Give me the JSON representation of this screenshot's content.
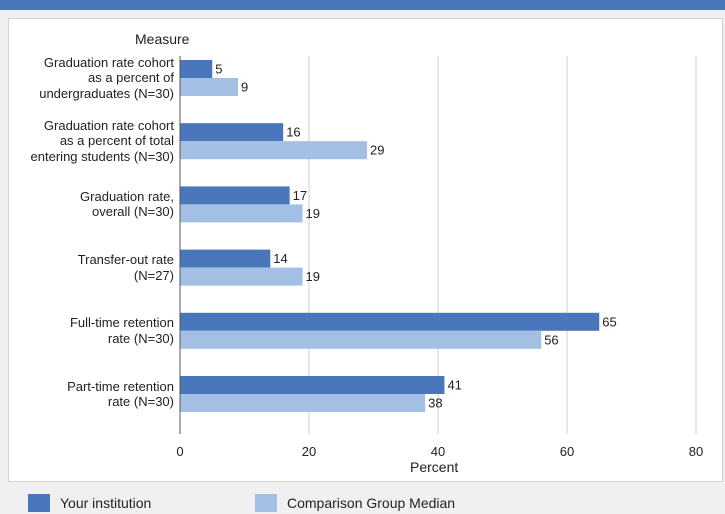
{
  "chart_data": {
    "type": "bar",
    "orientation": "horizontal",
    "ylabel": "Measure",
    "xlabel": "Percent",
    "xlim": [
      0,
      80
    ],
    "xticks": [
      0,
      20,
      40,
      60,
      80
    ],
    "grid": true,
    "legend_position": "bottom",
    "categories": [
      [
        "Graduation rate cohort",
        "as a percent of",
        "undergraduates (N=30)"
      ],
      [
        "Graduation rate cohort",
        "as a percent of total",
        "entering students (N=30)"
      ],
      [
        "Graduation rate,",
        "overall (N=30)"
      ],
      [
        "Transfer-out rate",
        "(N=27)"
      ],
      [
        "Full-time retention",
        "rate (N=30)"
      ],
      [
        "Part-time retention",
        "rate (N=30)"
      ]
    ],
    "series": [
      {
        "name": "Your institution",
        "color": "#4a76bc",
        "values": [
          5,
          16,
          17,
          14,
          65,
          41
        ]
      },
      {
        "name": "Comparison Group Median",
        "color": "#a3bfe3",
        "values": [
          9,
          29,
          19,
          19,
          56,
          38
        ]
      }
    ]
  }
}
